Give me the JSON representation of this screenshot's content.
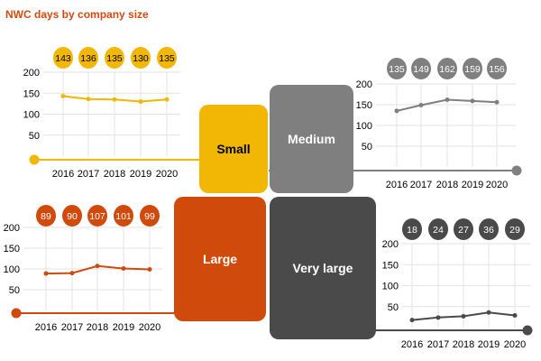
{
  "title": "NWC days by company size",
  "colors": {
    "small": "#f2b705",
    "medium": "#7f7f7f",
    "large": "#d04a0c",
    "very_large": "#4a4a4a",
    "grid": "#e3e3e3",
    "axis_text": "#000000",
    "title": "#d24a0f"
  },
  "tiles": [
    {
      "key": "small",
      "label": "Small"
    },
    {
      "key": "medium",
      "label": "Medium"
    },
    {
      "key": "large",
      "label": "Large"
    },
    {
      "key": "very_large",
      "label": "Very large"
    }
  ],
  "chart_data": [
    {
      "type": "line",
      "name": "Small",
      "x": [
        "2016",
        "2017",
        "2018",
        "2019",
        "2020"
      ],
      "values": [
        143,
        136,
        135,
        130,
        135
      ],
      "data_labels": [
        "143",
        "136",
        "135",
        "130",
        "135"
      ],
      "ylim": [
        0,
        200
      ],
      "yticks": [
        "200",
        "150",
        "100",
        "50"
      ],
      "color": "#f2b705",
      "grid": true
    },
    {
      "type": "line",
      "name": "Medium",
      "x": [
        "2016",
        "2017",
        "2018",
        "2019",
        "2020"
      ],
      "values": [
        135,
        149,
        162,
        159,
        156
      ],
      "data_labels": [
        "135",
        "149",
        "162",
        "159",
        "156"
      ],
      "ylim": [
        0,
        200
      ],
      "yticks": [
        "200",
        "150",
        "100",
        "50"
      ],
      "color": "#7f7f7f",
      "grid": true
    },
    {
      "type": "line",
      "name": "Large",
      "x": [
        "2016",
        "2017",
        "2018",
        "2019",
        "2020"
      ],
      "values": [
        89,
        90,
        107,
        101,
        99
      ],
      "data_labels": [
        "89",
        "90",
        "107",
        "101",
        "99"
      ],
      "ylim": [
        0,
        200
      ],
      "yticks": [
        "200",
        "150",
        "100",
        "50"
      ],
      "color": "#d04a0c",
      "grid": true
    },
    {
      "type": "line",
      "name": "Very large",
      "x": [
        "2016",
        "2017",
        "2018",
        "2019",
        "2020"
      ],
      "values": [
        18,
        24,
        27,
        36,
        29
      ],
      "data_labels": [
        "18",
        "24",
        "27",
        "36",
        "29"
      ],
      "ylim": [
        0,
        200
      ],
      "yticks": [
        "200",
        "150",
        "100",
        "50"
      ],
      "color": "#4a4a4a",
      "grid": true
    }
  ]
}
